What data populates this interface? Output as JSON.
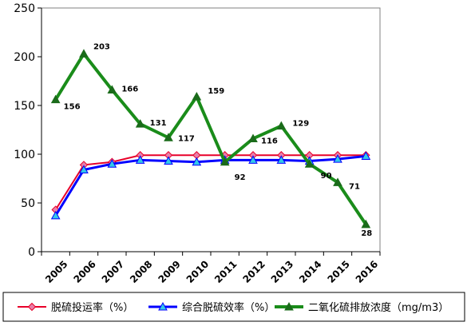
{
  "chart_data": {
    "type": "line",
    "x": [
      "2005",
      "2006",
      "2007",
      "2008",
      "2009",
      "2010",
      "2011",
      "2012",
      "2013",
      "2014",
      "2015",
      "2016"
    ],
    "ylim": [
      0,
      250
    ],
    "yticks": [
      "0",
      "50",
      "100",
      "150",
      "200",
      "250"
    ],
    "grid": false,
    "legend_position": "bottom",
    "series": [
      {
        "name": "脱硫投运率（%）",
        "color": "#e8002a",
        "marker": "diamond",
        "marker_fill": "#e87fa8",
        "values": [
          43,
          89,
          92,
          99,
          99,
          99,
          99,
          99,
          99,
          99,
          99,
          99
        ]
      },
      {
        "name": "综合脱硫效率（%）",
        "color": "#0000ff",
        "marker": "triangle",
        "marker_fill": "#33c8e8",
        "values": [
          37,
          84,
          90,
          94,
          93,
          92,
          94,
          94,
          94,
          93,
          95,
          98
        ]
      },
      {
        "name": "二氧化硫排放浓度（mg/m3）",
        "color": "#1a8c1a",
        "marker": "triangle",
        "marker_fill": "#1a6b1a",
        "values": [
          156,
          203,
          166,
          131,
          117,
          159,
          92,
          116,
          129,
          90,
          71,
          28
        ],
        "data_labels": [
          "156",
          "203",
          "166",
          "131",
          "117",
          "159",
          "92",
          "116",
          "129",
          "90",
          "71",
          "28"
        ]
      }
    ]
  }
}
